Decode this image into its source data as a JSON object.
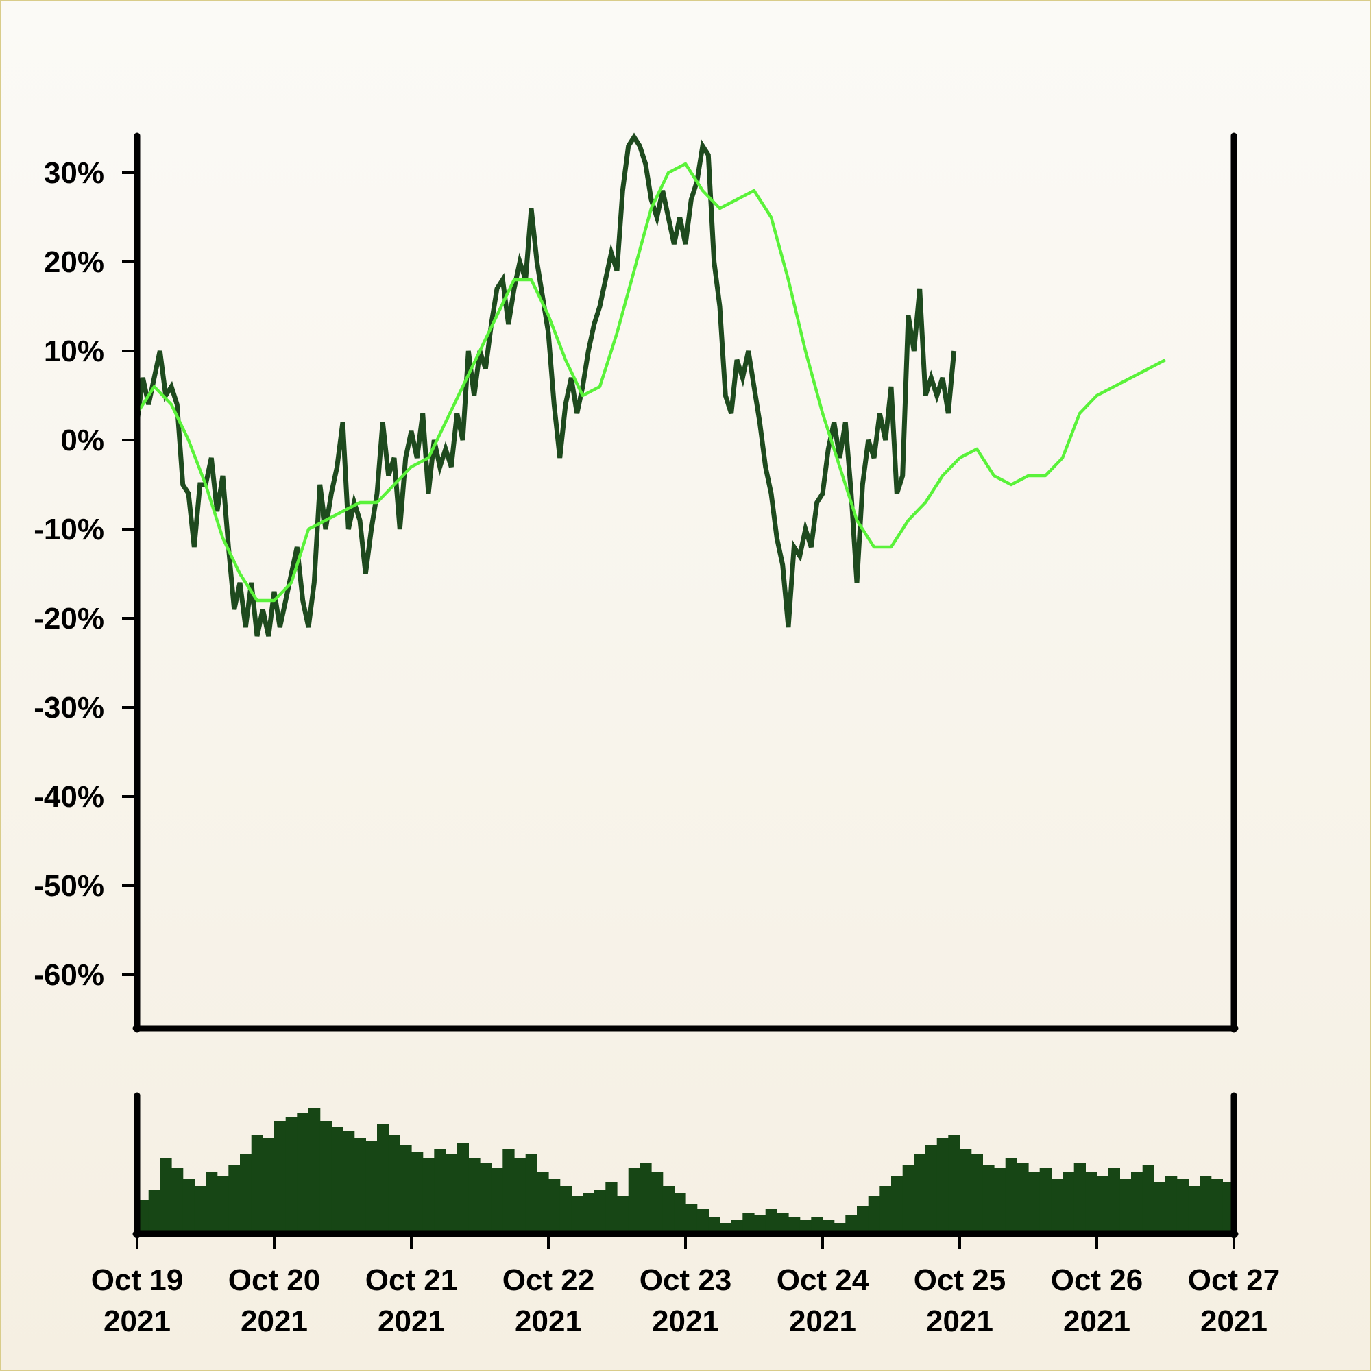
{
  "colors": {
    "background_top": "#fbfaf6",
    "background_bottom": "#f5efe2",
    "axis": "#000000",
    "price_line": "#1e4a1e",
    "moving_average": "#5af23a",
    "volume_bars": "#174615"
  },
  "chart_data": {
    "type": "line",
    "title": "",
    "xlabel": "",
    "ylabel": "",
    "x_range": [
      "2021-10-19",
      "2021-10-27"
    ],
    "ylim": [
      -0.66,
      0.34
    ],
    "y_tick_values": [
      0.3,
      0.2,
      0.1,
      0.0,
      -0.1,
      -0.2,
      -0.3,
      -0.4,
      -0.5,
      -0.6
    ],
    "y_tick_labels": [
      "30%",
      "20%",
      "10%",
      "0%",
      "-10%",
      "-20%",
      "-30%",
      "-40%",
      "-50%",
      "-60%"
    ],
    "x_tick_dates": [
      "2021-10-19",
      "2021-10-20",
      "2021-10-21",
      "2021-10-22",
      "2021-10-23",
      "2021-10-24",
      "2021-10-25",
      "2021-10-26",
      "2021-10-27"
    ],
    "x_tick_labels": [
      [
        "Oct 19",
        "2021"
      ],
      [
        "Oct 20",
        "2021"
      ],
      [
        "Oct 21",
        "2021"
      ],
      [
        "Oct 22",
        "2021"
      ],
      [
        "Oct 23",
        "2021"
      ],
      [
        "Oct 24",
        "2021"
      ],
      [
        "Oct 25",
        "2021"
      ],
      [
        "Oct 26",
        "2021"
      ],
      [
        "Oct 27",
        "2021"
      ]
    ],
    "grid": false,
    "series": [
      {
        "kind": "price",
        "points": [
          [
            "2021-10-19 00:00",
            0.02
          ],
          [
            "2021-10-19 01:00",
            0.07
          ],
          [
            "2021-10-19 02:00",
            0.04
          ],
          [
            "2021-10-19 03:00",
            0.07
          ],
          [
            "2021-10-19 04:00",
            0.1
          ],
          [
            "2021-10-19 05:00",
            0.05
          ],
          [
            "2021-10-19 06:00",
            0.06
          ],
          [
            "2021-10-19 07:00",
            0.04
          ],
          [
            "2021-10-19 08:00",
            -0.05
          ],
          [
            "2021-10-19 09:00",
            -0.06
          ],
          [
            "2021-10-19 10:00",
            -0.12
          ],
          [
            "2021-10-19 11:00",
            -0.05
          ],
          [
            "2021-10-19 12:00",
            -0.05
          ],
          [
            "2021-10-19 13:00",
            -0.02
          ],
          [
            "2021-10-19 14:00",
            -0.08
          ],
          [
            "2021-10-19 15:00",
            -0.04
          ],
          [
            "2021-10-19 16:00",
            -0.12
          ],
          [
            "2021-10-19 17:00",
            -0.19
          ],
          [
            "2021-10-19 18:00",
            -0.16
          ],
          [
            "2021-10-19 19:00",
            -0.21
          ],
          [
            "2021-10-19 20:00",
            -0.16
          ],
          [
            "2021-10-19 21:00",
            -0.22
          ],
          [
            "2021-10-19 22:00",
            -0.19
          ],
          [
            "2021-10-19 23:00",
            -0.22
          ],
          [
            "2021-10-20 00:00",
            -0.17
          ],
          [
            "2021-10-20 01:00",
            -0.21
          ],
          [
            "2021-10-20 02:00",
            -0.18
          ],
          [
            "2021-10-20 03:00",
            -0.15
          ],
          [
            "2021-10-20 04:00",
            -0.12
          ],
          [
            "2021-10-20 05:00",
            -0.18
          ],
          [
            "2021-10-20 06:00",
            -0.21
          ],
          [
            "2021-10-20 07:00",
            -0.16
          ],
          [
            "2021-10-20 08:00",
            -0.05
          ],
          [
            "2021-10-20 09:00",
            -0.1
          ],
          [
            "2021-10-20 10:00",
            -0.06
          ],
          [
            "2021-10-20 11:00",
            -0.03
          ],
          [
            "2021-10-20 12:00",
            0.02
          ],
          [
            "2021-10-20 13:00",
            -0.1
          ],
          [
            "2021-10-20 14:00",
            -0.07
          ],
          [
            "2021-10-20 15:00",
            -0.09
          ],
          [
            "2021-10-20 16:00",
            -0.15
          ],
          [
            "2021-10-20 17:00",
            -0.1
          ],
          [
            "2021-10-20 18:00",
            -0.06
          ],
          [
            "2021-10-20 19:00",
            0.02
          ],
          [
            "2021-10-20 20:00",
            -0.04
          ],
          [
            "2021-10-20 21:00",
            -0.02
          ],
          [
            "2021-10-20 22:00",
            -0.1
          ],
          [
            "2021-10-20 23:00",
            -0.02
          ],
          [
            "2021-10-21 00:00",
            0.01
          ],
          [
            "2021-10-21 01:00",
            -0.02
          ],
          [
            "2021-10-21 02:00",
            0.03
          ],
          [
            "2021-10-21 03:00",
            -0.06
          ],
          [
            "2021-10-21 04:00",
            0.0
          ],
          [
            "2021-10-21 05:00",
            -0.03
          ],
          [
            "2021-10-21 06:00",
            -0.01
          ],
          [
            "2021-10-21 07:00",
            -0.03
          ],
          [
            "2021-10-21 08:00",
            0.03
          ],
          [
            "2021-10-21 09:00",
            0.0
          ],
          [
            "2021-10-21 10:00",
            0.1
          ],
          [
            "2021-10-21 11:00",
            0.05
          ],
          [
            "2021-10-21 12:00",
            0.1
          ],
          [
            "2021-10-21 13:00",
            0.08
          ],
          [
            "2021-10-21 14:00",
            0.13
          ],
          [
            "2021-10-21 15:00",
            0.17
          ],
          [
            "2021-10-21 16:00",
            0.18
          ],
          [
            "2021-10-21 17:00",
            0.13
          ],
          [
            "2021-10-21 18:00",
            0.17
          ],
          [
            "2021-10-21 19:00",
            0.2
          ],
          [
            "2021-10-21 20:00",
            0.18
          ],
          [
            "2021-10-21 21:00",
            0.26
          ],
          [
            "2021-10-21 22:00",
            0.2
          ],
          [
            "2021-10-21 23:00",
            0.16
          ],
          [
            "2021-10-22 00:00",
            0.12
          ],
          [
            "2021-10-22 01:00",
            0.04
          ],
          [
            "2021-10-22 02:00",
            -0.02
          ],
          [
            "2021-10-22 03:00",
            0.04
          ],
          [
            "2021-10-22 04:00",
            0.07
          ],
          [
            "2021-10-22 05:00",
            0.03
          ],
          [
            "2021-10-22 06:00",
            0.06
          ],
          [
            "2021-10-22 07:00",
            0.1
          ],
          [
            "2021-10-22 08:00",
            0.13
          ],
          [
            "2021-10-22 09:00",
            0.15
          ],
          [
            "2021-10-22 10:00",
            0.18
          ],
          [
            "2021-10-22 11:00",
            0.21
          ],
          [
            "2021-10-22 12:00",
            0.19
          ],
          [
            "2021-10-22 13:00",
            0.28
          ],
          [
            "2021-10-22 14:00",
            0.33
          ],
          [
            "2021-10-22 15:00",
            0.34
          ],
          [
            "2021-10-22 16:00",
            0.33
          ],
          [
            "2021-10-22 17:00",
            0.31
          ],
          [
            "2021-10-22 18:00",
            0.27
          ],
          [
            "2021-10-22 19:00",
            0.25
          ],
          [
            "2021-10-22 20:00",
            0.28
          ],
          [
            "2021-10-22 21:00",
            0.25
          ],
          [
            "2021-10-22 22:00",
            0.22
          ],
          [
            "2021-10-22 23:00",
            0.25
          ],
          [
            "2021-10-23 00:00",
            0.22
          ],
          [
            "2021-10-23 01:00",
            0.27
          ],
          [
            "2021-10-23 02:00",
            0.29
          ],
          [
            "2021-10-23 03:00",
            0.33
          ],
          [
            "2021-10-23 04:00",
            0.32
          ],
          [
            "2021-10-23 05:00",
            0.2
          ],
          [
            "2021-10-23 06:00",
            0.15
          ],
          [
            "2021-10-23 07:00",
            0.05
          ],
          [
            "2021-10-23 08:00",
            0.03
          ],
          [
            "2021-10-23 09:00",
            0.09
          ],
          [
            "2021-10-23 10:00",
            0.07
          ],
          [
            "2021-10-23 11:00",
            0.1
          ],
          [
            "2021-10-23 12:00",
            0.06
          ],
          [
            "2021-10-23 13:00",
            0.02
          ],
          [
            "2021-10-23 14:00",
            -0.03
          ],
          [
            "2021-10-23 15:00",
            -0.06
          ],
          [
            "2021-10-23 16:00",
            -0.11
          ],
          [
            "2021-10-23 17:00",
            -0.14
          ],
          [
            "2021-10-23 18:00",
            -0.21
          ],
          [
            "2021-10-23 19:00",
            -0.12
          ],
          [
            "2021-10-23 20:00",
            -0.13
          ],
          [
            "2021-10-23 21:00",
            -0.1
          ],
          [
            "2021-10-23 22:00",
            -0.12
          ],
          [
            "2021-10-23 23:00",
            -0.07
          ],
          [
            "2021-10-24 00:00",
            -0.06
          ],
          [
            "2021-10-24 01:00",
            -0.01
          ],
          [
            "2021-10-24 02:00",
            0.02
          ],
          [
            "2021-10-24 03:00",
            -0.02
          ],
          [
            "2021-10-24 04:00",
            0.02
          ],
          [
            "2021-10-24 05:00",
            -0.06
          ],
          [
            "2021-10-24 06:00",
            -0.16
          ],
          [
            "2021-10-24 07:00",
            -0.05
          ],
          [
            "2021-10-24 08:00",
            0.0
          ],
          [
            "2021-10-24 09:00",
            -0.02
          ],
          [
            "2021-10-24 10:00",
            0.03
          ],
          [
            "2021-10-24 11:00",
            0.0
          ],
          [
            "2021-10-24 12:00",
            0.06
          ],
          [
            "2021-10-24 13:00",
            -0.06
          ],
          [
            "2021-10-24 14:00",
            -0.04
          ],
          [
            "2021-10-24 15:00",
            0.14
          ],
          [
            "2021-10-24 16:00",
            0.1
          ],
          [
            "2021-10-24 17:00",
            0.17
          ],
          [
            "2021-10-24 18:00",
            0.05
          ],
          [
            "2021-10-24 19:00",
            0.07
          ],
          [
            "2021-10-24 20:00",
            0.05
          ],
          [
            "2021-10-24 21:00",
            0.07
          ],
          [
            "2021-10-24 22:00",
            0.03
          ],
          [
            "2021-10-24 23:00",
            0.1
          ]
        ]
      },
      {
        "kind": "moving-average",
        "points": [
          [
            "2021-10-19 00:00",
            0.03
          ],
          [
            "2021-10-19 03:00",
            0.06
          ],
          [
            "2021-10-19 06:00",
            0.04
          ],
          [
            "2021-10-19 09:00",
            0.0
          ],
          [
            "2021-10-19 12:00",
            -0.05
          ],
          [
            "2021-10-19 15:00",
            -0.11
          ],
          [
            "2021-10-19 18:00",
            -0.15
          ],
          [
            "2021-10-19 21:00",
            -0.18
          ],
          [
            "2021-10-20 00:00",
            -0.18
          ],
          [
            "2021-10-20 03:00",
            -0.16
          ],
          [
            "2021-10-20 06:00",
            -0.1
          ],
          [
            "2021-10-20 09:00",
            -0.09
          ],
          [
            "2021-10-20 12:00",
            -0.08
          ],
          [
            "2021-10-20 15:00",
            -0.07
          ],
          [
            "2021-10-20 18:00",
            -0.07
          ],
          [
            "2021-10-20 21:00",
            -0.05
          ],
          [
            "2021-10-21 00:00",
            -0.03
          ],
          [
            "2021-10-21 03:00",
            -0.02
          ],
          [
            "2021-10-21 06:00",
            0.02
          ],
          [
            "2021-10-21 09:00",
            0.06
          ],
          [
            "2021-10-21 12:00",
            0.1
          ],
          [
            "2021-10-21 15:00",
            0.14
          ],
          [
            "2021-10-21 18:00",
            0.18
          ],
          [
            "2021-10-21 21:00",
            0.18
          ],
          [
            "2021-10-22 00:00",
            0.14
          ],
          [
            "2021-10-22 03:00",
            0.09
          ],
          [
            "2021-10-22 06:00",
            0.05
          ],
          [
            "2021-10-22 09:00",
            0.06
          ],
          [
            "2021-10-22 12:00",
            0.12
          ],
          [
            "2021-10-22 15:00",
            0.19
          ],
          [
            "2021-10-22 18:00",
            0.26
          ],
          [
            "2021-10-22 21:00",
            0.3
          ],
          [
            "2021-10-23 00:00",
            0.31
          ],
          [
            "2021-10-23 03:00",
            0.28
          ],
          [
            "2021-10-23 06:00",
            0.26
          ],
          [
            "2021-10-23 09:00",
            0.27
          ],
          [
            "2021-10-23 12:00",
            0.28
          ],
          [
            "2021-10-23 15:00",
            0.25
          ],
          [
            "2021-10-23 18:00",
            0.18
          ],
          [
            "2021-10-23 21:00",
            0.1
          ],
          [
            "2021-10-24 00:00",
            0.03
          ],
          [
            "2021-10-24 03:00",
            -0.03
          ],
          [
            "2021-10-24 06:00",
            -0.09
          ],
          [
            "2021-10-24 09:00",
            -0.12
          ],
          [
            "2021-10-24 12:00",
            -0.12
          ],
          [
            "2021-10-24 15:00",
            -0.09
          ],
          [
            "2021-10-24 18:00",
            -0.07
          ],
          [
            "2021-10-24 21:00",
            -0.04
          ],
          [
            "2021-10-25 00:00",
            -0.02
          ],
          [
            "2021-10-25 03:00",
            -0.01
          ],
          [
            "2021-10-25 06:00",
            -0.04
          ],
          [
            "2021-10-25 09:00",
            -0.05
          ],
          [
            "2021-10-25 12:00",
            -0.04
          ],
          [
            "2021-10-25 15:00",
            -0.04
          ],
          [
            "2021-10-25 18:00",
            -0.02
          ],
          [
            "2021-10-25 21:00",
            0.03
          ],
          [
            "2021-10-26 00:00",
            0.05
          ],
          [
            "2021-10-26 03:00",
            0.06
          ],
          [
            "2021-10-26 06:00",
            0.07
          ],
          [
            "2021-10-26 09:00",
            0.08
          ],
          [
            "2021-10-26 12:00",
            0.09
          ]
        ]
      }
    ],
    "volume_relative": [
      0.25,
      0.32,
      0.55,
      0.48,
      0.4,
      0.35,
      0.45,
      0.42,
      0.5,
      0.58,
      0.72,
      0.7,
      0.82,
      0.85,
      0.88,
      0.92,
      0.82,
      0.78,
      0.75,
      0.7,
      0.68,
      0.8,
      0.72,
      0.65,
      0.6,
      0.55,
      0.62,
      0.58,
      0.66,
      0.55,
      0.52,
      0.48,
      0.62,
      0.55,
      0.58,
      0.45,
      0.4,
      0.35,
      0.28,
      0.3,
      0.32,
      0.38,
      0.28,
      0.48,
      0.52,
      0.45,
      0.35,
      0.3,
      0.22,
      0.18,
      0.12,
      0.08,
      0.1,
      0.15,
      0.14,
      0.18,
      0.15,
      0.12,
      0.1,
      0.12,
      0.1,
      0.08,
      0.14,
      0.2,
      0.28,
      0.35,
      0.42,
      0.5,
      0.58,
      0.65,
      0.7,
      0.72,
      0.62,
      0.58,
      0.5,
      0.48,
      0.55,
      0.52,
      0.45,
      0.48,
      0.4,
      0.45,
      0.52,
      0.45,
      0.42,
      0.48,
      0.4,
      0.45,
      0.5,
      0.38,
      0.42,
      0.4,
      0.35,
      0.42,
      0.4,
      0.38
    ]
  }
}
